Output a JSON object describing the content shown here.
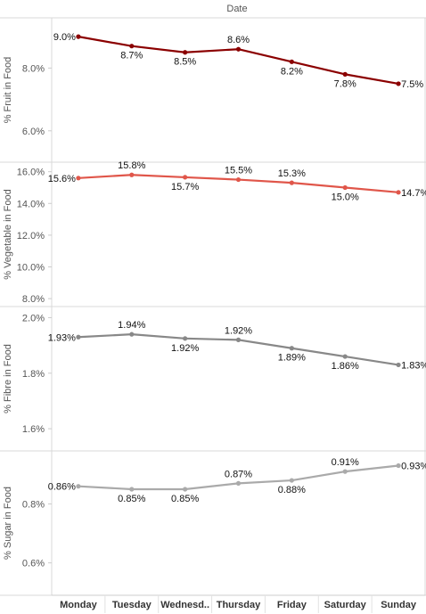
{
  "chart_data": {
    "type": "line",
    "title": "Date",
    "categories": [
      "Monday",
      "Tuesday",
      "Wednesd..",
      "Thursday",
      "Friday",
      "Saturday",
      "Sunday"
    ],
    "panels": [
      {
        "ylabel": "% Fruit in Food",
        "color": "#8b0000",
        "yticks": [
          "6.0%",
          "8.0%"
        ],
        "ytick_values": [
          6.0,
          8.0
        ],
        "ylim": [
          5.0,
          9.6
        ],
        "values": [
          9.0,
          8.7,
          8.5,
          8.6,
          8.2,
          7.8,
          7.5
        ],
        "labels": [
          "9.0%",
          "8.7%",
          "8.5%",
          "8.6%",
          "8.2%",
          "7.8%",
          "7.5%"
        ],
        "label_pos": [
          "left",
          "below",
          "below",
          "above",
          "below",
          "below",
          "right"
        ]
      },
      {
        "ylabel": "% Vegetable in Food",
        "color": "#e0564a",
        "yticks": [
          "8.0%",
          "10.0%",
          "12.0%",
          "14.0%",
          "16.0%"
        ],
        "ytick_values": [
          8.0,
          10.0,
          12.0,
          14.0,
          16.0
        ],
        "ylim": [
          7.5,
          16.6
        ],
        "values": [
          15.6,
          15.8,
          15.65,
          15.5,
          15.3,
          15.0,
          14.7
        ],
        "labels": [
          "15.6%",
          "15.8%",
          "15.7%",
          "15.5%",
          "15.3%",
          "15.0%",
          "14.7%"
        ],
        "label_pos": [
          "left",
          "above",
          "below",
          "above",
          "above",
          "below",
          "right"
        ]
      },
      {
        "ylabel": "% Fibre in Food",
        "color": "#888888",
        "yticks": [
          "1.6%",
          "1.8%",
          "2.0%"
        ],
        "ytick_values": [
          1.6,
          1.8,
          2.0
        ],
        "ylim": [
          1.52,
          2.04
        ],
        "values": [
          1.93,
          1.94,
          1.925,
          1.92,
          1.89,
          1.86,
          1.83
        ],
        "labels": [
          "1.93%",
          "1.94%",
          "1.92%",
          "1.92%",
          "1.89%",
          "1.86%",
          "1.83%"
        ],
        "label_pos": [
          "left",
          "above",
          "below",
          "above",
          "below",
          "below",
          "right"
        ]
      },
      {
        "ylabel": "% Sugar in Food",
        "color": "#aaaaaa",
        "yticks": [
          "0.6%",
          "0.8%"
        ],
        "ytick_values": [
          0.6,
          0.8
        ],
        "ylim": [
          0.49,
          0.98
        ],
        "values": [
          0.86,
          0.85,
          0.85,
          0.87,
          0.88,
          0.91,
          0.93
        ],
        "labels": [
          "0.86%",
          "0.85%",
          "0.85%",
          "0.87%",
          "0.88%",
          "0.91%",
          "0.93%"
        ],
        "label_pos": [
          "left",
          "below",
          "below",
          "above",
          "below",
          "above",
          "right"
        ]
      }
    ]
  }
}
